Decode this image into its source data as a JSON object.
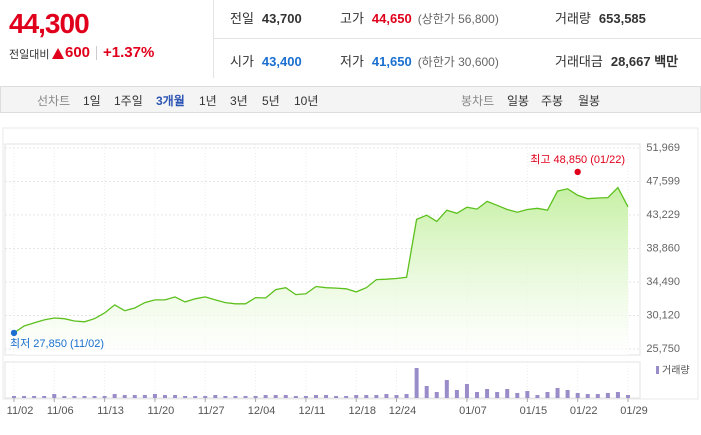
{
  "header": {
    "price": "44,300",
    "change_label": "전일대비",
    "change": "600",
    "change_rate": "+1.37%",
    "stats": [
      {
        "label": "전일",
        "value": "43,700"
      },
      {
        "label": "고가",
        "value": "44,650",
        "note": "(상한가 56,800)"
      },
      {
        "label": "거래량",
        "value": "653,585"
      },
      {
        "label": "시가",
        "value": "43,400"
      },
      {
        "label": "저가",
        "value": "41,650",
        "note": "(하한가 30,600)"
      },
      {
        "label": "거래대금",
        "value": "28,667 백만"
      }
    ]
  },
  "toolbar": {
    "line_label": "선차트",
    "line_periods": [
      "1일",
      "1주일",
      "3개월",
      "1년",
      "3년",
      "5년",
      "10년"
    ],
    "selected": "3개월",
    "candle_label": "봉차트",
    "candle_periods": [
      "일봉",
      "주봉",
      "월봉"
    ]
  },
  "chart_data": {
    "type": "line",
    "color": "#5cc01d",
    "fill": "#c6f0a4",
    "categories": [
      "11/02",
      null,
      null,
      null,
      "11/06",
      null,
      null,
      null,
      null,
      "11/13",
      null,
      null,
      null,
      null,
      "11/20",
      null,
      null,
      null,
      null,
      "11/27",
      null,
      null,
      null,
      null,
      "12/04",
      null,
      null,
      null,
      null,
      "12/11",
      null,
      null,
      null,
      null,
      "12/18",
      null,
      null,
      null,
      "12/24",
      null,
      null,
      null,
      null,
      null,
      null,
      "01/07",
      null,
      null,
      null,
      null,
      null,
      "01/15",
      null,
      null,
      null,
      null,
      "01/22",
      null,
      null,
      null,
      null,
      "01/29"
    ],
    "values": [
      27850,
      28750,
      29150,
      29550,
      29800,
      29700,
      29400,
      29300,
      29700,
      30450,
      31500,
      30750,
      31100,
      31800,
      32150,
      32150,
      32550,
      31900,
      32300,
      32550,
      32150,
      31800,
      31650,
      31650,
      32450,
      32400,
      33500,
      33750,
      32850,
      32950,
      33900,
      33750,
      33700,
      33600,
      33200,
      33750,
      34800,
      34850,
      34950,
      35100,
      42650,
      43200,
      42400,
      43850,
      43450,
      44250,
      44000,
      45000,
      44500,
      43950,
      43600,
      43950,
      44100,
      43850,
      46350,
      46650,
      45800,
      45350,
      45450,
      45500,
      46800,
      44300
    ],
    "ylim": [
      25750,
      51969
    ],
    "yticks": [
      {
        "value": 25750,
        "label": "25,750"
      },
      {
        "value": 30120,
        "label": "30,120"
      },
      {
        "value": 34490,
        "label": "34,490"
      },
      {
        "value": 38860,
        "label": "38,860"
      },
      {
        "value": 43229,
        "label": "43,229"
      },
      {
        "value": 47599,
        "label": "47,599"
      },
      {
        "value": 51969,
        "label": "51,969"
      }
    ],
    "grid": true,
    "volume": {
      "name": "거래량",
      "color": "#9a8cc9",
      "axis": "y2",
      "values": [
        440000,
        440000,
        440000,
        440000,
        880000,
        440000,
        440000,
        440000,
        440000,
        440000,
        880000,
        660000,
        660000,
        660000,
        880000,
        660000,
        660000,
        440000,
        440000,
        440000,
        660000,
        440000,
        440000,
        440000,
        440000,
        660000,
        660000,
        660000,
        440000,
        440000,
        660000,
        660000,
        440000,
        440000,
        660000,
        660000,
        660000,
        880000,
        660000,
        880000,
        6600000,
        2640000,
        1320000,
        3960000,
        1760000,
        3080000,
        1320000,
        1980000,
        1320000,
        1980000,
        1100000,
        1540000,
        660000,
        1320000,
        2200000,
        1760000,
        1100000,
        880000,
        880000,
        1100000,
        1320000,
        660000
      ]
    },
    "y2lim": [
      0,
      7920000
    ],
    "max": {
      "text": "최고 48,850 (01/22)",
      "value": 48850,
      "x": "01/22",
      "color": "#e0001b"
    },
    "min": {
      "text": "최저 27,850 (11/02)",
      "value": 27850,
      "x": "11/02",
      "color": "#1a6fd0"
    }
  }
}
